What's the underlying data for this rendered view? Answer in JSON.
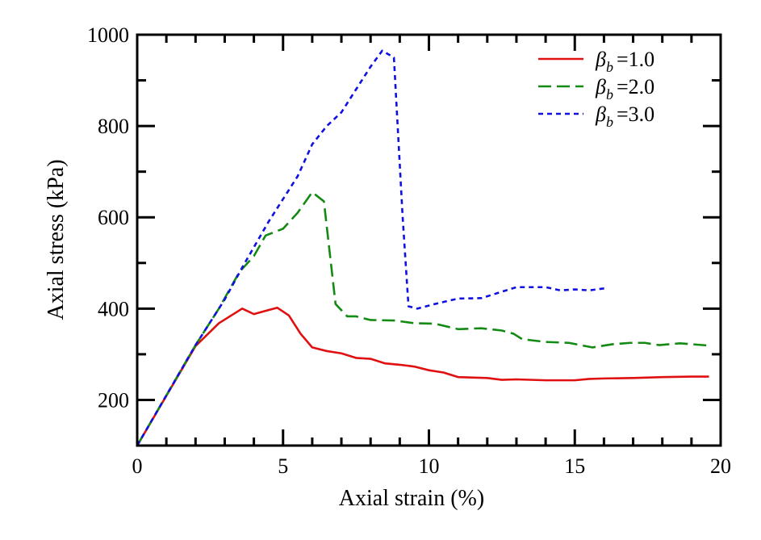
{
  "chart_data": {
    "type": "line",
    "xlabel": "Axial strain  (%)",
    "ylabel": "Axial stress  (kPa)",
    "xlim": [
      0,
      20
    ],
    "ylim": [
      100,
      1000
    ],
    "xticks": [
      "0",
      "5",
      "10",
      "15",
      "20"
    ],
    "yticks": [
      "200",
      "400",
      "600",
      "800",
      "1000"
    ],
    "grid": false,
    "legend_position": "top-right",
    "series": [
      {
        "name": "βb = 1.0",
        "symbol": "β",
        "subscript": "b",
        "value_text": "=1.0",
        "color": "#e01010",
        "dash": "solid",
        "x": [
          0,
          2,
          2.8,
          3.6,
          4.0,
          4.4,
          4.8,
          5.2,
          5.6,
          6.0,
          6.5,
          7,
          7.5,
          8,
          8.5,
          9,
          9.5,
          10,
          10.5,
          11,
          12,
          12.5,
          13,
          14,
          15,
          15.5,
          16,
          17,
          18,
          19,
          19.6
        ],
        "y": [
          100,
          318,
          368,
          400,
          388,
          395,
          402,
          385,
          345,
          315,
          307,
          302,
          292,
          290,
          280,
          277,
          273,
          265,
          260,
          250,
          248,
          244,
          245,
          243,
          243,
          246,
          247,
          248,
          250,
          251,
          251
        ]
      },
      {
        "name": "βb = 2.0",
        "symbol": "β",
        "subscript": "b",
        "value_text": "=2.0",
        "color": "#138a13",
        "dash": "dashed",
        "x": [
          0,
          2,
          2.8,
          3.5,
          4,
          4.4,
          5,
          5.5,
          6,
          6.4,
          6.8,
          7.2,
          7.5,
          8,
          8.8,
          9.5,
          10.2,
          11,
          11.8,
          12.5,
          12.9,
          13.2,
          14,
          14.8,
          15.6,
          16.3,
          16.9,
          17.4,
          17.9,
          18.6,
          19.6
        ],
        "y": [
          100,
          320,
          400,
          480,
          515,
          560,
          575,
          610,
          655,
          635,
          410,
          383,
          383,
          375,
          374,
          368,
          367,
          355,
          357,
          352,
          345,
          333,
          327,
          325,
          315,
          322,
          325,
          325,
          320,
          324,
          319
        ]
      },
      {
        "name": "βb = 3.0",
        "symbol": "β",
        "subscript": "b",
        "value_text": "=3.0",
        "color": "#1010e0",
        "dash": "dotted",
        "x": [
          0,
          2,
          3,
          3.6,
          4.5,
          5.5,
          6,
          6.5,
          7,
          7.5,
          8,
          8.4,
          8.8,
          9.1,
          9.3,
          9.6,
          10.2,
          11,
          11.8,
          12.5,
          13,
          14,
          14.5,
          15,
          15.5,
          16.1
        ],
        "y": [
          100,
          320,
          420,
          490,
          590,
          690,
          760,
          800,
          830,
          880,
          930,
          965,
          950,
          600,
          405,
          400,
          410,
          422,
          423,
          437,
          447,
          447,
          440,
          442,
          440,
          445
        ]
      }
    ]
  }
}
